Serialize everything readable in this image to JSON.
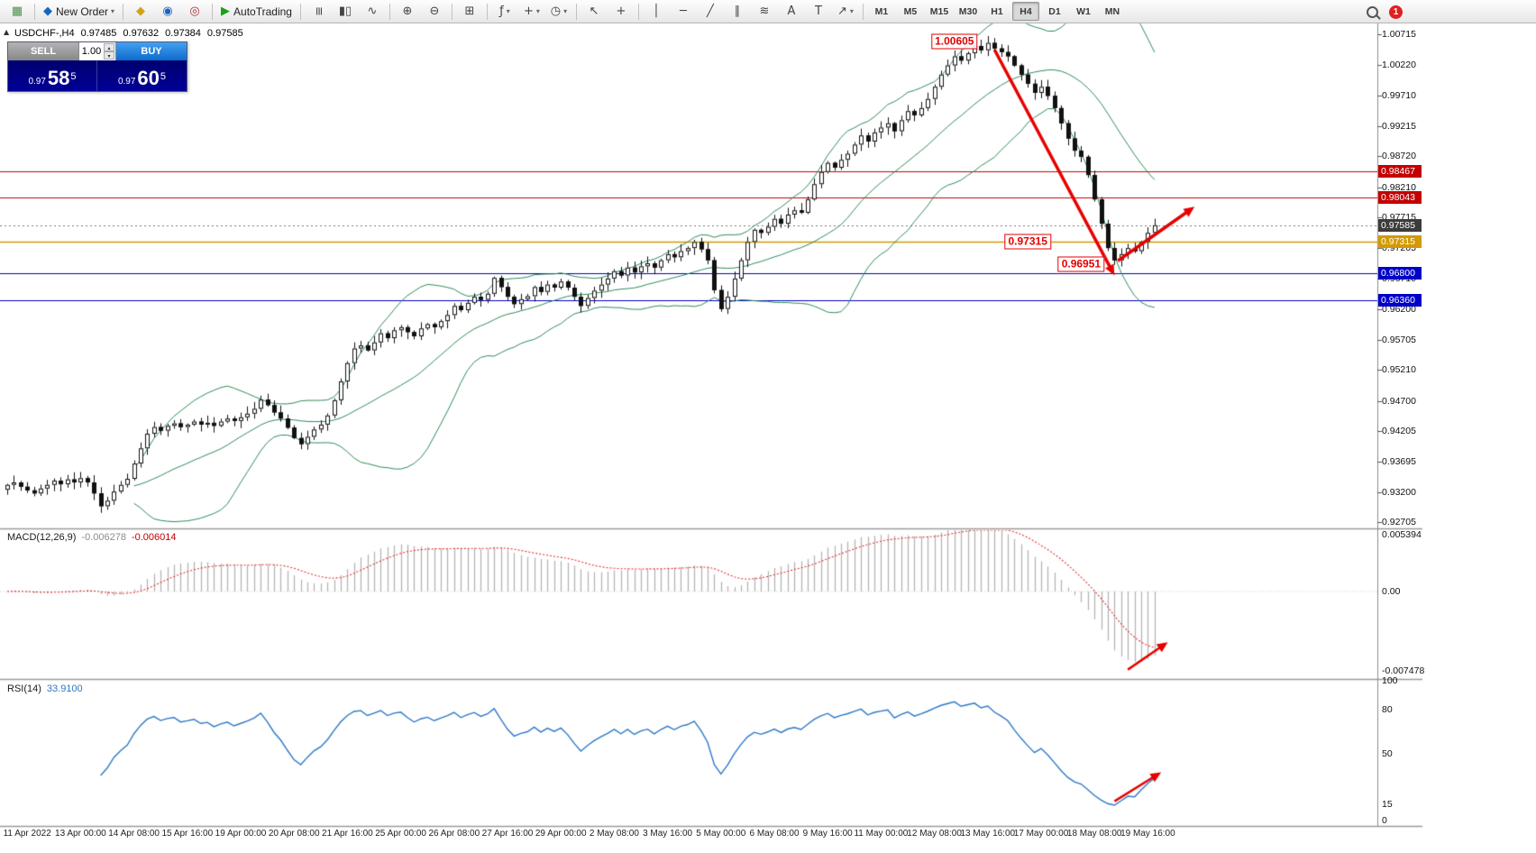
{
  "icons": {
    "caret_down": "▾",
    "caret_up": "▴",
    "collapse_up": "▲"
  },
  "toolbar": {
    "groups": [
      {
        "items": [
          {
            "name": "chart-window-icon",
            "glyph": "▦",
            "color": "#4a8f4a"
          }
        ]
      },
      {
        "items": [
          {
            "name": "new-order-button",
            "glyph": "◆",
            "color": "#1565c0",
            "label": "New Order",
            "caret": true
          }
        ]
      },
      {
        "items": [
          {
            "name": "alerts-icon",
            "glyph": "◆",
            "color": "#d4a017"
          },
          {
            "name": "mailbox-icon",
            "glyph": "◉",
            "color": "#1565c0"
          },
          {
            "name": "community-icon",
            "glyph": "◎",
            "color": "#b03030"
          }
        ]
      },
      {
        "items": [
          {
            "name": "autotrading-button",
            "glyph": "▶",
            "color": "#18a018",
            "label": "AutoTrading"
          }
        ]
      },
      {
        "items": [
          {
            "name": "bar-chart-icon",
            "glyph": "≡",
            "rot": 90
          },
          {
            "name": "candlestick-chart-icon",
            "glyph": "▮▯"
          },
          {
            "name": "line-chart-icon",
            "glyph": "∿"
          }
        ]
      },
      {
        "items": [
          {
            "name": "zoom-in-icon",
            "glyph": "⊕"
          },
          {
            "name": "zoom-out-icon",
            "glyph": "⊖"
          }
        ]
      },
      {
        "items": [
          {
            "name": "tile-windows-icon",
            "glyph": "⊞"
          }
        ]
      },
      {
        "items": [
          {
            "name": "indicators-icon",
            "glyph": "ƒ",
            "caret": true
          },
          {
            "name": "objects-icon",
            "glyph": "+",
            "caret": true
          },
          {
            "name": "periods-icon",
            "glyph": "◷",
            "caret": true
          }
        ]
      },
      {
        "items": [
          {
            "name": "cursor-icon",
            "glyph": "↖"
          },
          {
            "name": "crosshair-icon",
            "glyph": "+"
          }
        ]
      },
      {
        "items": [
          {
            "name": "vertical-line-icon",
            "glyph": "│"
          },
          {
            "name": "horizontal-line-icon",
            "glyph": "─"
          },
          {
            "name": "trendline-icon",
            "glyph": "╱"
          },
          {
            "name": "equidistant-channel-icon",
            "glyph": "∥"
          },
          {
            "name": "fibonacci-icon",
            "glyph": "≋"
          },
          {
            "name": "text-icon",
            "glyph": "A"
          },
          {
            "name": "text-label-icon",
            "glyph": "T"
          },
          {
            "name": "arrows-shapes-icon",
            "glyph": "↗",
            "caret": true
          }
        ]
      }
    ],
    "timeframes": [
      "M1",
      "M5",
      "M15",
      "M30",
      "H1",
      "H4",
      "D1",
      "W1",
      "MN"
    ],
    "active_timeframe": "H4",
    "notification_badge": "1"
  },
  "trade_panel": {
    "sell_label": "SELL",
    "buy_label": "BUY",
    "volume": "1.00",
    "sell_small": "0.97",
    "sell_big": "58",
    "sell_sup": "5",
    "buy_small": "0.97",
    "buy_big": "60",
    "buy_sup": "5"
  },
  "chart_header": {
    "symbol": "USDCHF-,H4",
    "open": "0.97485",
    "high": "0.97632",
    "low": "0.97384",
    "close": "0.97585"
  },
  "panels": {
    "macd": {
      "title": "MACD(12,26,9)",
      "value1": "-0.006278",
      "value2": "-0.006014",
      "ticks": [
        {
          "label": "0.005394",
          "value": 0.005394
        },
        {
          "label": "0.00",
          "value": 0
        },
        {
          "label": "-0.007478",
          "value": -0.007478
        }
      ]
    },
    "rsi": {
      "title": "RSI(14)",
      "value": "33.9100",
      "ticks": [
        {
          "label": "100",
          "value": 100
        },
        {
          "label": "80",
          "value": 80
        },
        {
          "label": "50",
          "value": 50
        },
        {
          "label": "15",
          "value": 15
        },
        {
          "label": "0",
          "value": 0
        }
      ]
    }
  },
  "chart_data": {
    "type": "candlestick",
    "symbol": "USDCHF-",
    "timeframe": "H4",
    "price_range": [
      0.9262,
      1.009
    ],
    "closes": [
      0.9332,
      0.9336,
      0.9329,
      0.9323,
      0.9318,
      0.9326,
      0.9332,
      0.9339,
      0.9333,
      0.9341,
      0.9336,
      0.9343,
      0.9336,
      0.9318,
      0.9297,
      0.9306,
      0.9321,
      0.9332,
      0.9342,
      0.9367,
      0.9392,
      0.9416,
      0.9427,
      0.9421,
      0.9429,
      0.9433,
      0.9427,
      0.9431,
      0.9436,
      0.9431,
      0.9434,
      0.9429,
      0.9436,
      0.9441,
      0.9437,
      0.9443,
      0.9449,
      0.9457,
      0.9472,
      0.9463,
      0.9451,
      0.9441,
      0.9426,
      0.9409,
      0.9399,
      0.9411,
      0.9423,
      0.9431,
      0.9446,
      0.9471,
      0.9502,
      0.9532,
      0.9556,
      0.9561,
      0.9553,
      0.9566,
      0.9581,
      0.9573,
      0.9586,
      0.9591,
      0.9583,
      0.9576,
      0.9589,
      0.9596,
      0.9591,
      0.9601,
      0.9611,
      0.9626,
      0.9619,
      0.9631,
      0.9641,
      0.9636,
      0.9646,
      0.9672,
      0.9657,
      0.9641,
      0.9629,
      0.9637,
      0.9642,
      0.9657,
      0.9649,
      0.9661,
      0.9656,
      0.9666,
      0.9656,
      0.9641,
      0.9626,
      0.9639,
      0.9651,
      0.9661,
      0.9671,
      0.9683,
      0.9676,
      0.9689,
      0.9681,
      0.9691,
      0.9696,
      0.9689,
      0.9701,
      0.9711,
      0.9706,
      0.9716,
      0.9721,
      0.9731,
      0.9719,
      0.9701,
      0.9652,
      0.9621,
      0.9641,
      0.9671,
      0.9701,
      0.9731,
      0.9751,
      0.9746,
      0.9756,
      0.9769,
      0.9761,
      0.9776,
      0.9783,
      0.9779,
      0.9801,
      0.9826,
      0.9846,
      0.9861,
      0.9853,
      0.9866,
      0.9876,
      0.9891,
      0.9906,
      0.9896,
      0.9911,
      0.9919,
      0.9926,
      0.9913,
      0.9931,
      0.9946,
      0.9939,
      0.9951,
      0.9966,
      0.9986,
      1.0006,
      1.0021,
      1.0036,
      1.0029,
      1.0041,
      1.0053,
      1.0046,
      1.0058,
      1.0049,
      1.0043,
      1.0036,
      1.0021,
      1.0006,
      0.9991,
      0.9976,
      0.9986,
      0.9971,
      0.9951,
      0.9926,
      0.9901,
      0.9881,
      0.9871,
      0.9841,
      0.9801,
      0.9761,
      0.9721,
      0.9701,
      0.9711,
      0.9721,
      0.9716,
      0.9731,
      0.9746,
      0.97585
    ],
    "price_ticks": [
      "1.00715",
      "1.00220",
      "0.99710",
      "0.99215",
      "0.98720",
      "0.98210",
      "0.97715",
      "0.97205",
      "0.96710",
      "0.96200",
      "0.95705",
      "0.95210",
      "0.94700",
      "0.94205",
      "0.93695",
      "0.93200",
      "0.92705"
    ],
    "hlines": [
      {
        "price": 0.98467,
        "label": "0.98467",
        "color": "#c40000"
      },
      {
        "price": 0.98043,
        "label": "0.98043",
        "color": "#c40000"
      },
      {
        "price": 0.97315,
        "label": "0.97315",
        "color": "#d29a00"
      },
      {
        "price": 0.968,
        "label": "0.96800",
        "color": "#0000c8"
      },
      {
        "price": 0.9636,
        "label": "0.96360",
        "color": "#0000c8"
      }
    ],
    "current_price": {
      "label": "0.97585",
      "value": 0.97585,
      "color": "#3c3c3c"
    },
    "annotations": [
      {
        "name": "peak-price-label",
        "text": "1.00605",
        "bar": 142,
        "price": 1.00605
      },
      {
        "name": "support-price-label",
        "text": "0.97315",
        "bar": 153,
        "price": 0.97315
      },
      {
        "name": "trough-price-label",
        "text": "0.96951",
        "bar": 161,
        "price": 0.9695
      }
    ],
    "arrows": {
      "main": [
        {
          "name": "downtrend-arrow",
          "from_bar": 148,
          "from_price": 1.0047,
          "to_bar": 166,
          "to_price": 0.9676
        },
        {
          "name": "bounce-arrow",
          "from_bar": 166.5,
          "from_price": 0.97,
          "to_bar": 178,
          "to_price": 0.9789
        }
      ],
      "macd": [
        {
          "name": "macd-turn-arrow",
          "from_bar": 168,
          "from_value": -0.0074,
          "to_bar": 174,
          "to_value": -0.0048
        }
      ],
      "rsi": [
        {
          "name": "rsi-turn-arrow",
          "from_bar": 166,
          "from_value": 17,
          "to_bar": 173,
          "to_value": 37
        }
      ]
    },
    "time_labels": [
      "11 Apr 2022",
      "13 Apr 00:00",
      "14 Apr 08:00",
      "15 Apr 16:00",
      "19 Apr 00:00",
      "20 Apr 08:00",
      "21 Apr 16:00",
      "25 Apr 00:00",
      "26 Apr 08:00",
      "27 Apr 16:00",
      "29 Apr 00:00",
      "2 May 08:00",
      "3 May 16:00",
      "5 May 00:00",
      "6 May 08:00",
      "9 May 16:00",
      "11 May 00:00",
      "12 May 08:00",
      "13 May 16:00",
      "17 May 00:00",
      "18 May 08:00",
      "19 May 16:00"
    ],
    "time_label_first_bar": 3,
    "time_label_step": 8
  }
}
